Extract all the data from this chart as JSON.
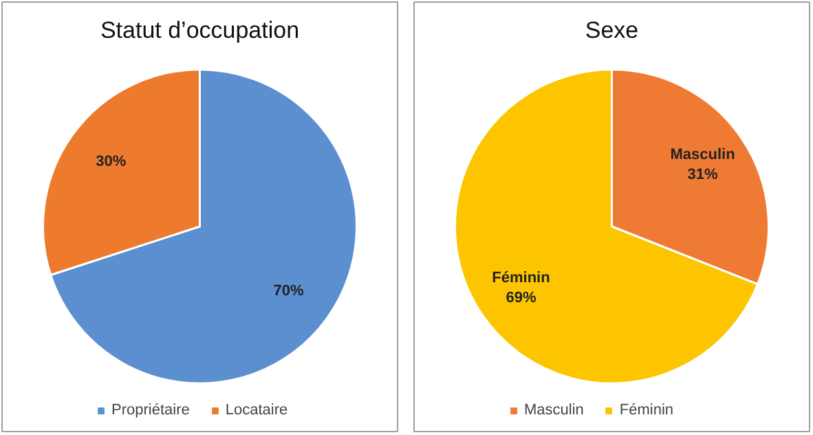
{
  "chart_data": [
    {
      "type": "pie",
      "title": "Statut d’occupation",
      "categories": [
        "Propriétaire",
        "Locataire"
      ],
      "values": [
        70,
        30
      ],
      "colors": [
        "#5b8fd0",
        "#ee7a2e"
      ],
      "value_labels": [
        "70%",
        "30%"
      ],
      "legend": "bottom"
    },
    {
      "type": "pie",
      "title": "Sexe",
      "categories": [
        "Masculin",
        "Féminin"
      ],
      "values": [
        31,
        69
      ],
      "colors": [
        "#ef7a33",
        "#fcc500"
      ],
      "value_labels": [
        "Masculin\n31%",
        "Féminin\n69%"
      ],
      "legend": "bottom"
    }
  ]
}
